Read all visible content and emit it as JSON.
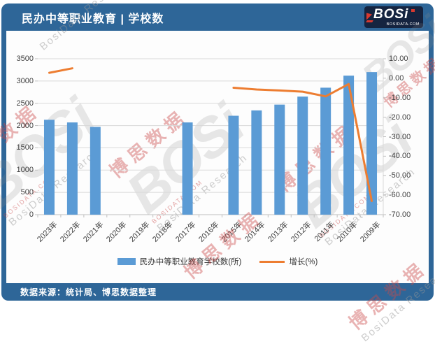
{
  "header": {
    "title": "民办中等职业教育 | 学校数",
    "logo": {
      "text": "BOSi",
      "site": "BOSIDATA.COM"
    }
  },
  "footer": {
    "source": "数据来源：统计局、博思数据整理"
  },
  "legend": [
    {
      "label": "民办中等职业教育学校数(所)"
    },
    {
      "label": "增长(%)"
    }
  ],
  "watermark": {
    "cn": "博思数据",
    "en": "BosiData Research",
    "logo": "BOSi",
    "site": "BOSIDATA.COM"
  },
  "colors": {
    "frame_blue": "#2e6698",
    "bar": "#5b9bd5",
    "line": "#ed7d31",
    "grid": "#d9d9d9",
    "axis_tick": "#bfbfbf",
    "axis_text": "#404040",
    "logo_navy": "#152440",
    "logo_red": "#d8392f"
  },
  "chart_data": {
    "type": "bar",
    "subtype": "bar+line-combo",
    "categories": [
      "2023年",
      "2022年",
      "2021年",
      "2020年",
      "2019年",
      "2018年",
      "2017年",
      "2016年",
      "2015年",
      "2014年",
      "2013年",
      "2012年",
      "2011年",
      "2010年",
      "2009年"
    ],
    "series": [
      {
        "name": "民办中等职业教育学校数(所)",
        "type": "bar",
        "axis": "left",
        "values": [
          2130,
          2070,
          1970,
          null,
          null,
          null,
          2070,
          null,
          2220,
          2340,
          2470,
          2650,
          2850,
          3120,
          3200
        ]
      },
      {
        "name": "增长(%)",
        "type": "line",
        "axis": "right",
        "values": [
          2.8,
          5.1,
          null,
          null,
          null,
          null,
          null,
          null,
          -4.9,
          -5.8,
          -6.3,
          -6.9,
          -9.3,
          -3.0,
          -63.0
        ]
      }
    ],
    "left_axis": {
      "min": 0,
      "max": 3500,
      "ticks": [
        0,
        500,
        1000,
        1500,
        2000,
        2500,
        3000,
        3500
      ]
    },
    "right_axis": {
      "min": -70,
      "max": 10,
      "ticks": [
        "10.00",
        "0.00",
        "-10.00",
        "-20.00",
        "-30.00",
        "-40.00",
        "-50.00",
        "-60.00",
        "-70.00"
      ]
    },
    "grid": true,
    "legend_position": "bottom",
    "x_axis_order": "reversed-chronological"
  }
}
